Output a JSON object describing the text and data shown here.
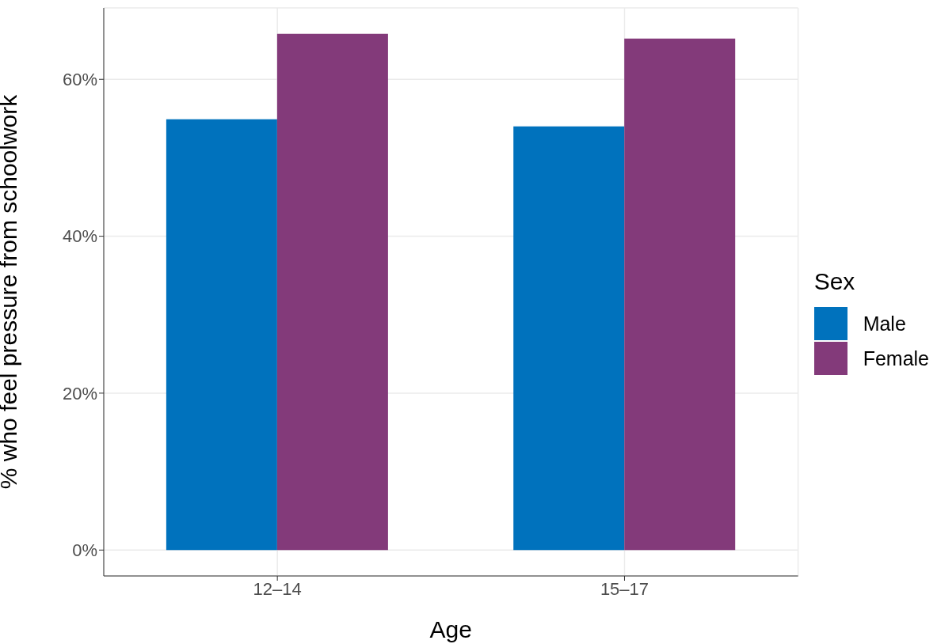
{
  "chart_data": {
    "type": "bar",
    "xlabel": "Age",
    "ylabel": "% who feel pressure from schoolwork",
    "legend_title": "Sex",
    "categories": [
      "12–14",
      "15–17"
    ],
    "series": [
      {
        "name": "Male",
        "color": "#0072bd",
        "values": [
          54.9,
          54.0
        ]
      },
      {
        "name": "Female",
        "color": "#833a7a",
        "values": [
          65.8,
          65.2
        ]
      }
    ],
    "ylim": [
      -3.3,
      69.1
    ],
    "yticks": [
      {
        "value": 0,
        "label": "0%"
      },
      {
        "value": 20,
        "label": "20%"
      },
      {
        "value": 40,
        "label": "40%"
      },
      {
        "value": 60,
        "label": "60%"
      }
    ],
    "grid": true,
    "legend": "right"
  }
}
